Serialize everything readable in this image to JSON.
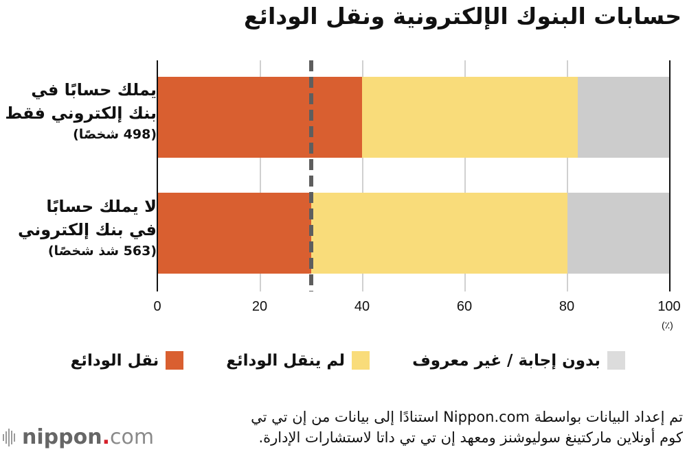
{
  "title": "حسابات البنوك الإلكترونية ونقل الودائع",
  "categories": [
    {
      "label_line1": "يملك حسابًا في",
      "label_line2": "بنك إلكتروني فقط",
      "count": "(498 شخصًا)"
    },
    {
      "label_line1": "لا يملك حسابًا",
      "label_line2": "في بنك إلكتروني",
      "count": "(563 شذ شخصًا)"
    }
  ],
  "x_ticks": [
    "0",
    "20",
    "40",
    "60",
    "80",
    "100"
  ],
  "unit": "(٪)",
  "legend": [
    {
      "label": "نقل الودائع",
      "color": "#d95f30"
    },
    {
      "label": "لم ينقل الودائع",
      "color": "#f9dc7a"
    },
    {
      "label": "بدون إجابة / غير معروف",
      "color": "#dcdcdc"
    }
  ],
  "source_line1": "تم إعداد البيانات بواسطة Nippon.com استنادًا إلى بيانات من إن تي تي",
  "source_line2": "كوم أونلاين ماركتينغ سوليوشنز ومعهد إن تي تي داتا لاستشارات الإدارة.",
  "logo": {
    "name": "nippon",
    "dot": ".",
    "suffix": "com"
  },
  "chart_data": {
    "type": "bar",
    "orientation": "horizontal",
    "stacked": true,
    "title": "حسابات البنوك الإلكترونية ونقل الودائع",
    "categories": [
      "يملك حسابًا في بنك إلكتروني فقط (498 شخصًا)",
      "لا يملك حسابًا في بنك إلكتروني (563 شخصًا)"
    ],
    "series": [
      {
        "name": "نقل الودائع",
        "color": "#d95f30",
        "values": [
          40,
          30
        ]
      },
      {
        "name": "لم ينقل الودائع",
        "color": "#f9dc7a",
        "values": [
          42,
          50
        ]
      },
      {
        "name": "بدون إجابة / غير معروف",
        "color": "#cccccc",
        "values": [
          18,
          20
        ]
      }
    ],
    "reference_line": {
      "x": 30,
      "style": "dashed",
      "color": "#5e5e5e"
    },
    "xlabel": "(٪)",
    "xlim": [
      0,
      100
    ],
    "xticks": [
      0,
      20,
      40,
      60,
      80,
      100
    ],
    "grid": true,
    "legend_position": "bottom"
  }
}
